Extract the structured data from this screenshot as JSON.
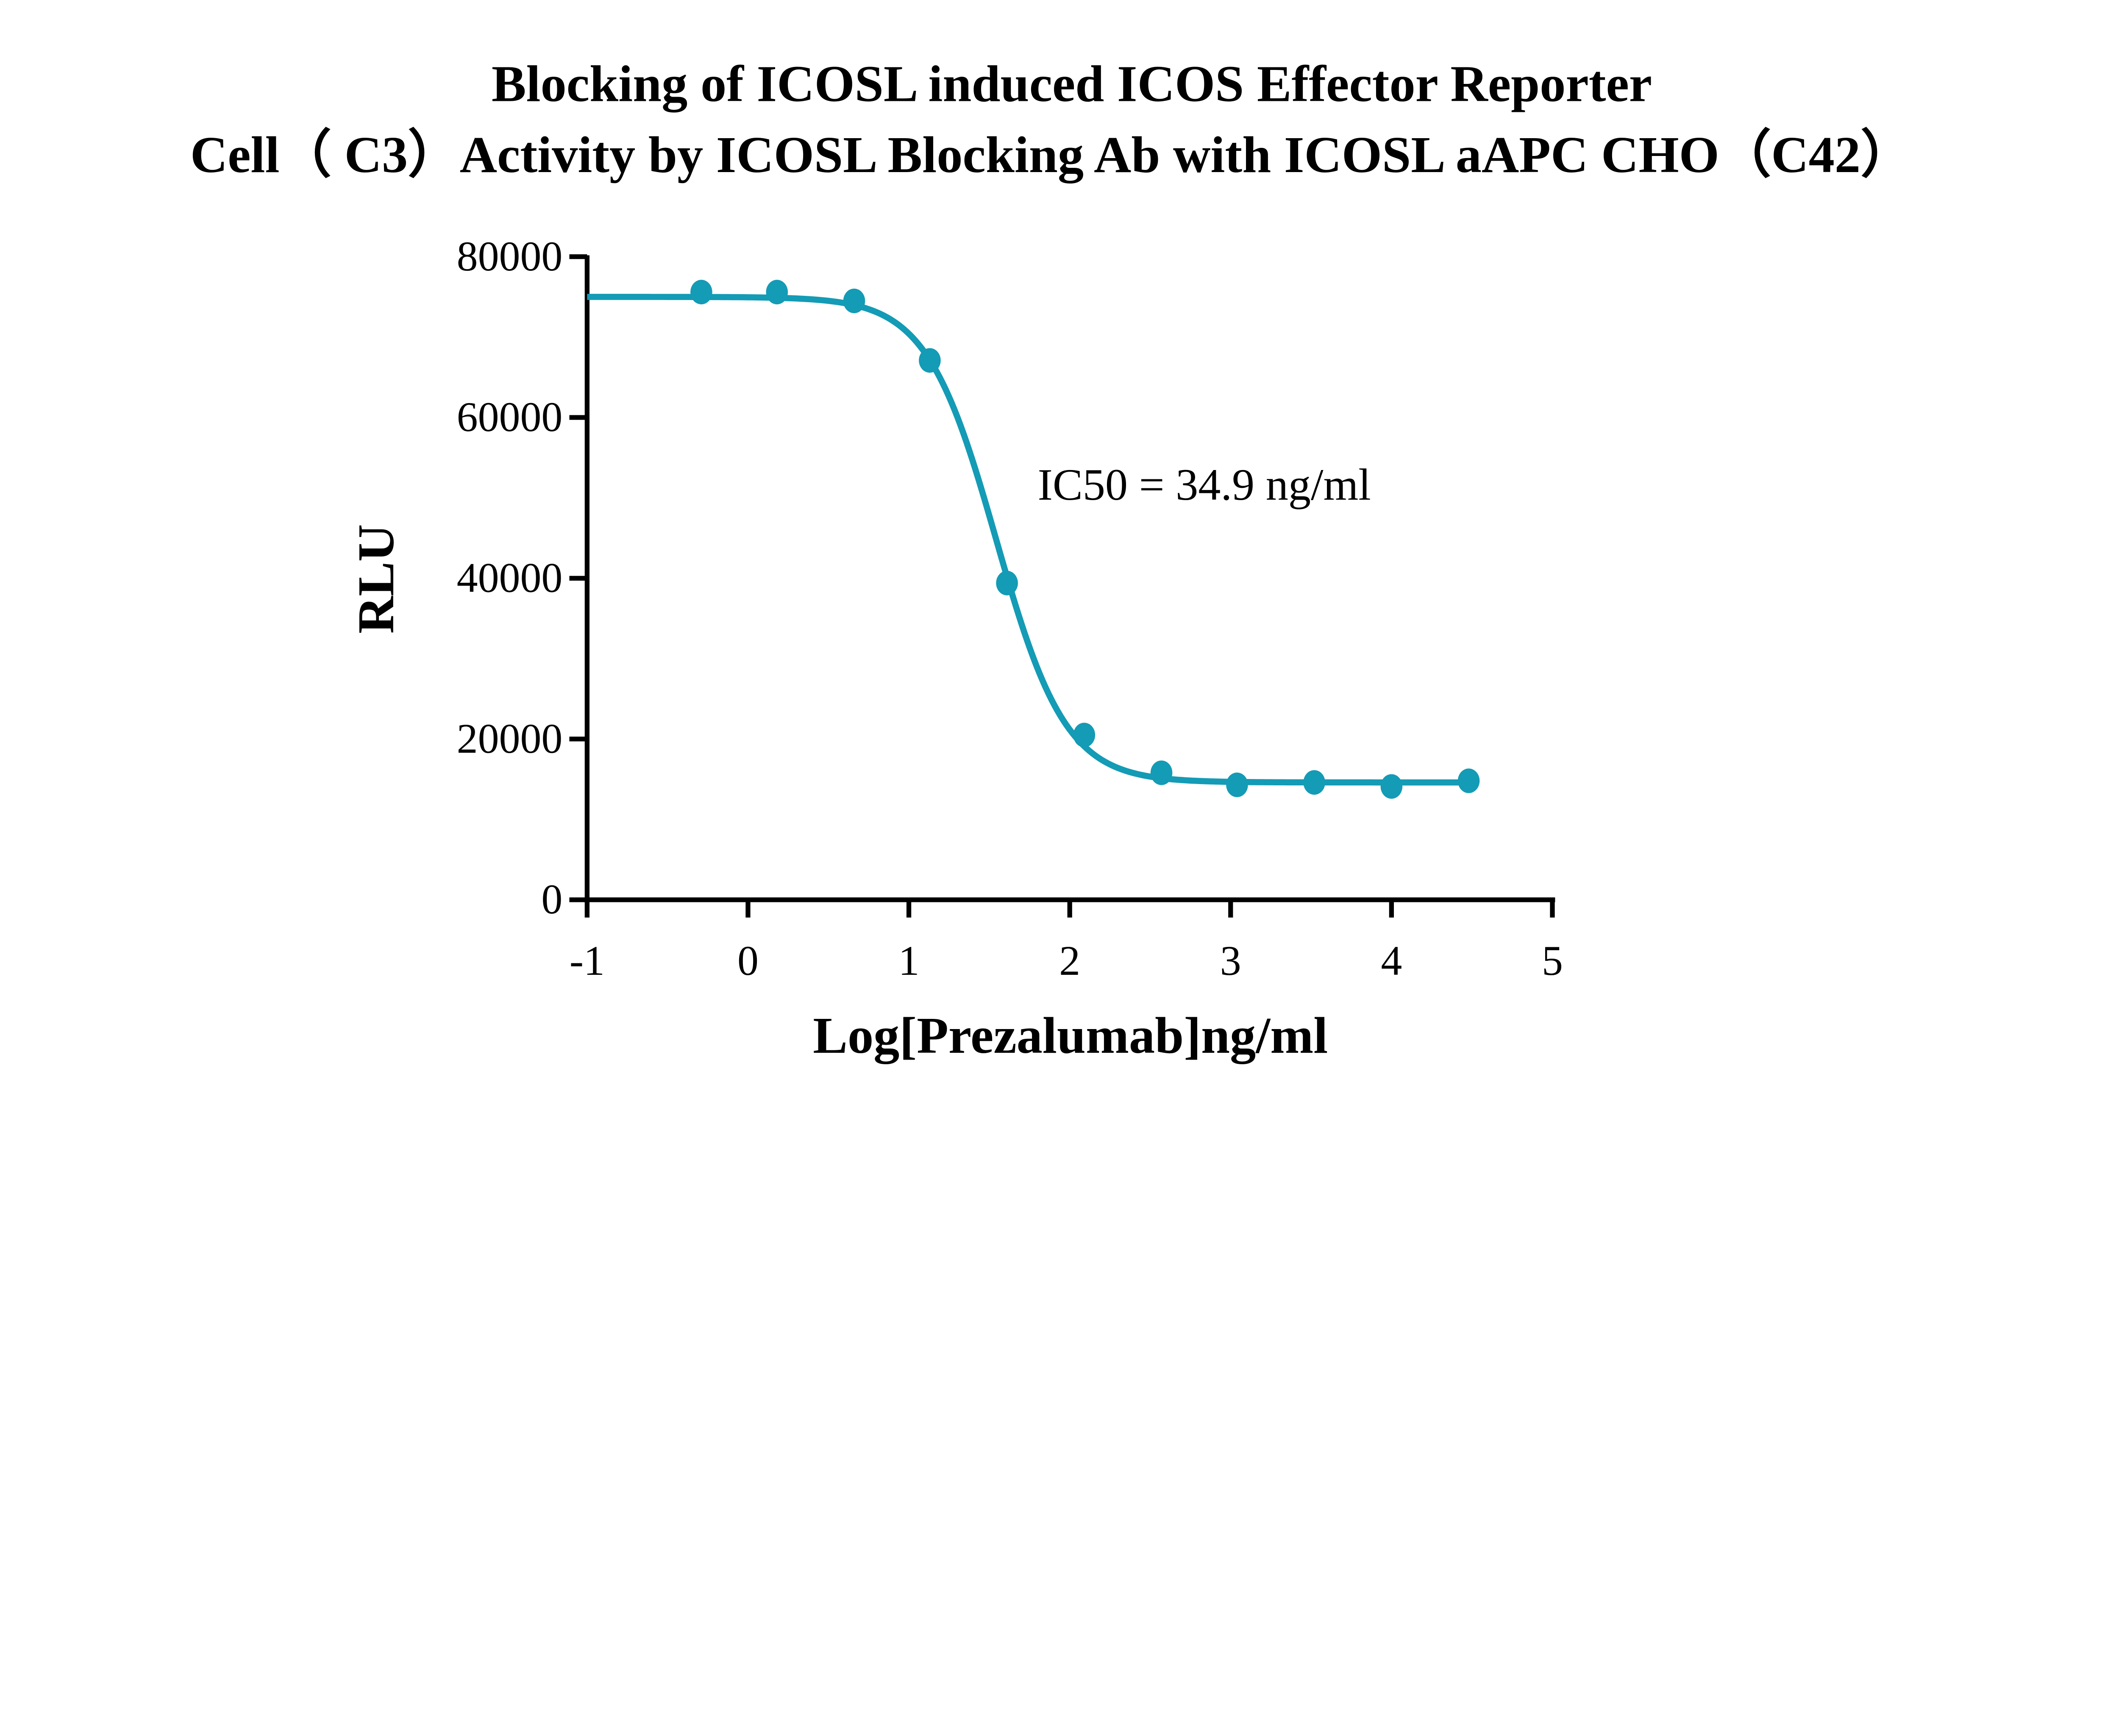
{
  "chart_data": {
    "type": "scatter",
    "title": [
      "Blocking of ICOSL induced ICOS Effector Reporter",
      "Cell（ C3）Activity by ICOSL Blocking Ab with ICOSL aAPC CHO（C42）"
    ],
    "xlabel": "Log[Prezalumab]ng/ml",
    "ylabel": "RLU",
    "xlim": [
      -1,
      5
    ],
    "ylim": [
      0,
      80000
    ],
    "xticks": [
      "-1",
      "0",
      "1",
      "2",
      "3",
      "4",
      "5"
    ],
    "yticks": [
      "0",
      "20000",
      "40000",
      "60000",
      "80000"
    ],
    "grid": false,
    "annotation": "IC50 = 34.9 ng/ml",
    "color": "#149bb5",
    "points": {
      "x": [
        -0.29,
        0.18,
        0.66,
        1.13,
        1.61,
        2.09,
        2.57,
        3.04,
        3.52,
        4.0,
        4.48
      ],
      "y": [
        75600,
        75600,
        74500,
        67100,
        39400,
        20500,
        15800,
        14300,
        14600,
        14100,
        14800
      ]
    },
    "fit": {
      "model": "4PL",
      "top": 75000,
      "bottom": 14600,
      "logIC50": 1.543,
      "hill": 2.0,
      "x_range": [
        -1,
        4.48
      ]
    }
  }
}
